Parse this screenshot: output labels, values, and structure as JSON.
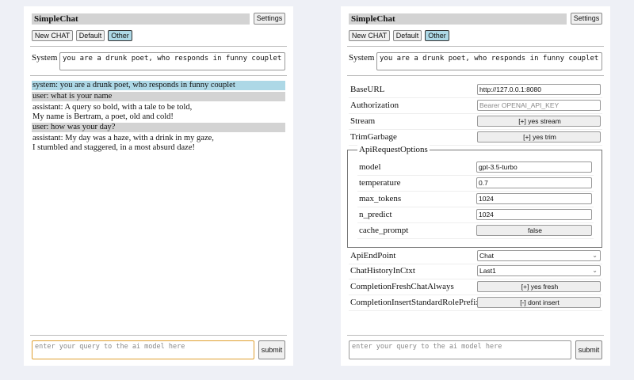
{
  "app_title": "SimpleChat",
  "settings_label": "Settings",
  "chat_buttons": [
    "New CHAT",
    "Default",
    "Other"
  ],
  "system_label": "System",
  "system_prompt": "you are a drunk poet, who responds in funny couplet",
  "messages": [
    {
      "role": "system",
      "lines": [
        "system: you are a drunk poet, who responds in funny couplet"
      ]
    },
    {
      "role": "user",
      "lines": [
        "user: what is your name"
      ]
    },
    {
      "role": "assistant",
      "lines": [
        "assistant: A query so bold, with a tale to be told,",
        "My name is Bertram, a poet, old and cold!"
      ]
    },
    {
      "role": "user",
      "lines": [
        "user: how was your day?"
      ]
    },
    {
      "role": "assistant",
      "lines": [
        "assistant: My day was a haze, with a drink in my gaze,",
        "I stumbled and staggered, in a most absurd daze!"
      ]
    }
  ],
  "query_placeholder": "enter your query to the ai model here",
  "submit_label": "submit",
  "settings": {
    "base_url": {
      "label": "BaseURL",
      "value": "http://127.0.0.1:8080"
    },
    "authorization": {
      "label": "Authorization",
      "placeholder": "Bearer OPENAI_API_KEY"
    },
    "stream": {
      "label": "Stream",
      "value": "[+] yes stream"
    },
    "trim_garbage": {
      "label": "TrimGarbage",
      "value": "[+] yes trim"
    },
    "api_request_options": {
      "legend": "ApiRequestOptions",
      "model": {
        "label": "model",
        "value": "gpt-3.5-turbo"
      },
      "temperature": {
        "label": "temperature",
        "value": "0.7"
      },
      "max_tokens": {
        "label": "max_tokens",
        "value": "1024"
      },
      "n_predict": {
        "label": "n_predict",
        "value": "1024"
      },
      "cache_prompt": {
        "label": "cache_prompt",
        "value": "false"
      }
    },
    "api_endpoint": {
      "label": "ApiEndPoint",
      "value": "Chat"
    },
    "chat_history": {
      "label": "ChatHistoryInCtxt",
      "value": "Last1"
    },
    "fresh_chat": {
      "label": "CompletionFreshChatAlways",
      "value": "[+] yes fresh"
    },
    "insert_prefix": {
      "label": "CompletionInsertStandardRolePrefix",
      "value": "[-] dont insert"
    }
  },
  "colors": {
    "selected": "#add8e6",
    "user_bg": "#d3d3d3",
    "system_bg": "#add8e6",
    "focus": "#e0a030"
  }
}
